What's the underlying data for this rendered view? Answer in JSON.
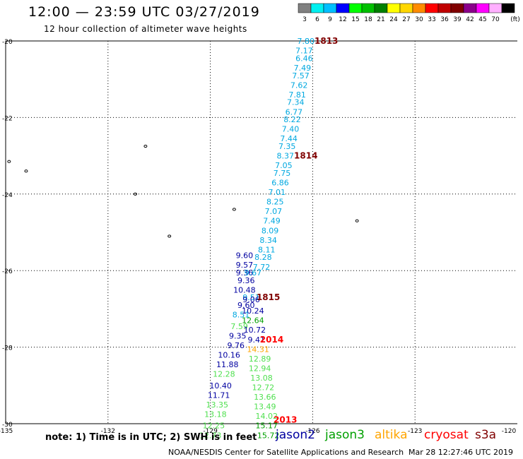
{
  "header": {
    "title": "12:00 — 23:59 UTC 03/27/2019",
    "subtitle": "12 hour collection of altimeter wave heights"
  },
  "colorbar": {
    "unit": "(ft)",
    "bins": [
      {
        "label": "3",
        "color": "#808080"
      },
      {
        "label": "6",
        "color": "#00f0f0"
      },
      {
        "label": "9",
        "color": "#00bfff"
      },
      {
        "label": "12",
        "color": "#0000ff"
      },
      {
        "label": "15",
        "color": "#00ff00"
      },
      {
        "label": "18",
        "color": "#00c000"
      },
      {
        "label": "21",
        "color": "#008000"
      },
      {
        "label": "24",
        "color": "#ffff00"
      },
      {
        "label": "27",
        "color": "#ffd700"
      },
      {
        "label": "30",
        "color": "#ff8c00"
      },
      {
        "label": "33",
        "color": "#ff0000"
      },
      {
        "label": "36",
        "color": "#c00000"
      },
      {
        "label": "39",
        "color": "#800000"
      },
      {
        "label": "42",
        "color": "#8b008b"
      },
      {
        "label": "45",
        "color": "#ff00ff"
      },
      {
        "label": "70",
        "color": "#ffb0ff"
      },
      {
        "label": "",
        "color": "#000000"
      }
    ]
  },
  "axes": {
    "lat_ticks": [
      "-20",
      "-22",
      "-24",
      "-26",
      "-28",
      "-30"
    ],
    "lon_ticks": [
      "-135",
      "-132",
      "-129",
      "-126",
      "-123",
      "-120"
    ]
  },
  "colors": {
    "jason2": "#0000a0",
    "jason3": "#00a000",
    "altika": "#ffa500",
    "cryosat": "#ff0000",
    "s3a": "#800000",
    "cyan_track": "#00a8e0",
    "green_track": "#50e050",
    "dark_green_track": "#00a000"
  },
  "time_labels": [
    {
      "text": "1813",
      "lon": -125.6,
      "lat": -20.0,
      "color": "#800000"
    },
    {
      "text": "1814",
      "lon": -126.2,
      "lat": -23.0,
      "color": "#800000"
    },
    {
      "text": "1815",
      "lon": -127.3,
      "lat": -26.7,
      "color": "#800000"
    },
    {
      "text": "2014",
      "lon": -127.2,
      "lat": -27.8,
      "color": "#ff0000"
    },
    {
      "text": "2013",
      "lon": -126.8,
      "lat": -29.9,
      "color": "#ff0000"
    }
  ],
  "swh_labels": [
    {
      "text": "7.80",
      "lon": -126.2,
      "lat": -20.0,
      "color": "#00a8e0"
    },
    {
      "text": "7.17",
      "lon": -126.25,
      "lat": -20.25,
      "color": "#00a8e0"
    },
    {
      "text": "6.46",
      "lon": -126.25,
      "lat": -20.45,
      "color": "#00a8e0"
    },
    {
      "text": "7.49",
      "lon": -126.3,
      "lat": -20.7,
      "color": "#00a8e0"
    },
    {
      "text": "7.57",
      "lon": -126.35,
      "lat": -20.9,
      "color": "#00a8e0"
    },
    {
      "text": "7.62",
      "lon": -126.4,
      "lat": -21.15,
      "color": "#00a8e0"
    },
    {
      "text": "7.81",
      "lon": -126.45,
      "lat": -21.4,
      "color": "#00a8e0"
    },
    {
      "text": "7.34",
      "lon": -126.5,
      "lat": -21.6,
      "color": "#00a8e0"
    },
    {
      "text": "6.77",
      "lon": -126.55,
      "lat": -21.85,
      "color": "#00a8e0"
    },
    {
      "text": "8.22",
      "lon": -126.6,
      "lat": -22.05,
      "color": "#00a8e0"
    },
    {
      "text": "7.40",
      "lon": -126.65,
      "lat": -22.3,
      "color": "#00a8e0"
    },
    {
      "text": "7.44",
      "lon": -126.7,
      "lat": -22.55,
      "color": "#00a8e0"
    },
    {
      "text": "7.35",
      "lon": -126.75,
      "lat": -22.75,
      "color": "#00a8e0"
    },
    {
      "text": "8.37",
      "lon": -126.8,
      "lat": -23.0,
      "color": "#00a8e0"
    },
    {
      "text": "7.05",
      "lon": -126.85,
      "lat": -23.25,
      "color": "#00a8e0"
    },
    {
      "text": "7.75",
      "lon": -126.9,
      "lat": -23.45,
      "color": "#00a8e0"
    },
    {
      "text": "6.86",
      "lon": -126.95,
      "lat": -23.7,
      "color": "#00a8e0"
    },
    {
      "text": "7.01",
      "lon": -127.05,
      "lat": -23.95,
      "color": "#00a8e0"
    },
    {
      "text": "8.25",
      "lon": -127.1,
      "lat": -24.2,
      "color": "#00a8e0"
    },
    {
      "text": "7.07",
      "lon": -127.15,
      "lat": -24.45,
      "color": "#00a8e0"
    },
    {
      "text": "7.49",
      "lon": -127.2,
      "lat": -24.7,
      "color": "#00a8e0"
    },
    {
      "text": "8.09",
      "lon": -127.25,
      "lat": -24.95,
      "color": "#00a8e0"
    },
    {
      "text": "8.34",
      "lon": -127.3,
      "lat": -25.2,
      "color": "#00a8e0"
    },
    {
      "text": "8.11",
      "lon": -127.35,
      "lat": -25.45,
      "color": "#00a8e0"
    },
    {
      "text": "8.28",
      "lon": -127.45,
      "lat": -25.65,
      "color": "#00a8e0"
    },
    {
      "text": "7.72",
      "lon": -127.5,
      "lat": -25.9,
      "color": "#00a8e0"
    },
    {
      "text": "9.60",
      "lon": -128.0,
      "lat": -25.6,
      "color": "#0000a0"
    },
    {
      "text": "9.57",
      "lon": -128.0,
      "lat": -25.85,
      "color": "#0000a0"
    },
    {
      "text": "9.36",
      "lon": -128.0,
      "lat": -26.05,
      "color": "#0000a0"
    },
    {
      "text": "9.67",
      "lon": -127.75,
      "lat": -26.05,
      "color": "#00a8e0"
    },
    {
      "text": "9.36",
      "lon": -127.95,
      "lat": -26.25,
      "color": "#0000a0"
    },
    {
      "text": "10.48",
      "lon": -128.0,
      "lat": -26.5,
      "color": "#0000a0"
    },
    {
      "text": "9.51",
      "lon": -127.8,
      "lat": -26.7,
      "color": "#00a8e0"
    },
    {
      "text": "9.06",
      "lon": -127.8,
      "lat": -26.75,
      "color": "#0000a0"
    },
    {
      "text": "9.60",
      "lon": -127.95,
      "lat": -26.9,
      "color": "#0000a0"
    },
    {
      "text": "10.24",
      "lon": -127.75,
      "lat": -27.05,
      "color": "#0000a0"
    },
    {
      "text": "8.51",
      "lon": -128.1,
      "lat": -27.15,
      "color": "#00a8e0"
    },
    {
      "text": "12.64",
      "lon": -127.75,
      "lat": -27.3,
      "color": "#00a000"
    },
    {
      "text": "7.59",
      "lon": -128.15,
      "lat": -27.45,
      "color": "#50e050"
    },
    {
      "text": "10.72",
      "lon": -127.7,
      "lat": -27.55,
      "color": "#0000a0"
    },
    {
      "text": "9.35",
      "lon": -128.2,
      "lat": -27.7,
      "color": "#0000a0"
    },
    {
      "text": "9.41",
      "lon": -127.65,
      "lat": -27.8,
      "color": "#0000a0"
    },
    {
      "text": "9.76",
      "lon": -128.25,
      "lat": -27.95,
      "color": "#0000a0"
    },
    {
      "text": "14.31",
      "lon": -127.6,
      "lat": -28.05,
      "color": "#ffa500"
    },
    {
      "text": "10.16",
      "lon": -128.45,
      "lat": -28.2,
      "color": "#0000a0"
    },
    {
      "text": "12.89",
      "lon": -127.55,
      "lat": -28.3,
      "color": "#50e050"
    },
    {
      "text": "11.88",
      "lon": -128.5,
      "lat": -28.45,
      "color": "#0000a0"
    },
    {
      "text": "12.94",
      "lon": -127.55,
      "lat": -28.55,
      "color": "#50e050"
    },
    {
      "text": "12.28",
      "lon": -128.6,
      "lat": -28.7,
      "color": "#50e050"
    },
    {
      "text": "13.08",
      "lon": -127.5,
      "lat": -28.8,
      "color": "#50e050"
    },
    {
      "text": "10.40",
      "lon": -128.7,
      "lat": -29.0,
      "color": "#0000a0"
    },
    {
      "text": "12.72",
      "lon": -127.45,
      "lat": -29.05,
      "color": "#50e050"
    },
    {
      "text": "11.71",
      "lon": -128.75,
      "lat": -29.25,
      "color": "#0000a0"
    },
    {
      "text": "13.66",
      "lon": -127.4,
      "lat": -29.3,
      "color": "#50e050"
    },
    {
      "text": "13.35",
      "lon": -128.8,
      "lat": -29.5,
      "color": "#50e050"
    },
    {
      "text": "13.49",
      "lon": -127.4,
      "lat": -29.55,
      "color": "#50e050"
    },
    {
      "text": "13.18",
      "lon": -128.85,
      "lat": -29.75,
      "color": "#50e050"
    },
    {
      "text": "14.02",
      "lon": -127.35,
      "lat": -29.8,
      "color": "#50e050"
    },
    {
      "text": "12.25",
      "lon": -128.9,
      "lat": -30.05,
      "color": "#50e050"
    },
    {
      "text": "15.17",
      "lon": -127.35,
      "lat": -30.05,
      "color": "#00a000"
    },
    {
      "text": "12.73",
      "lon": -129.0,
      "lat": -30.3,
      "color": "#50e050"
    },
    {
      "text": "15.72",
      "lon": -127.3,
      "lat": -30.3,
      "color": "#00a000"
    }
  ],
  "islands": [
    {
      "name": "ducie-group-a",
      "lon": -130.9,
      "lat": -22.75
    },
    {
      "name": "henderson-a",
      "lon": -134.9,
      "lat": -23.15
    },
    {
      "name": "pitcairn",
      "lon": -134.4,
      "lat": -23.4
    },
    {
      "name": "islet-a",
      "lon": -131.2,
      "lat": -24.0
    },
    {
      "name": "islet-b",
      "lon": -128.3,
      "lat": -24.4
    },
    {
      "name": "islet-c",
      "lon": -130.2,
      "lat": -25.1
    },
    {
      "name": "islet-d",
      "lon": -124.7,
      "lat": -24.7
    }
  ],
  "footer": {
    "note": "note: 1) Time is in UTC; 2) SWH is in feet",
    "credit": "NOAA/NESDIS Center for Satellite Applications and Research",
    "timestamp": "Mar 28 12:27:46 UTC 2019"
  },
  "satellites": {
    "jason2": "jason2",
    "jason3": "jason3",
    "altika": "altika",
    "cryosat": "cryosat",
    "s3a": "s3a"
  }
}
